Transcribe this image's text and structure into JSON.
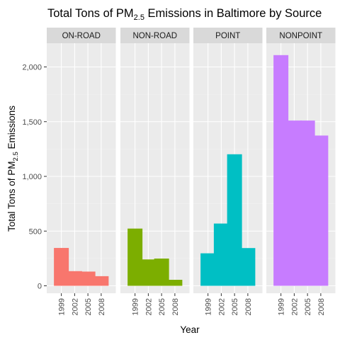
{
  "chart_data": {
    "type": "bar",
    "title": {
      "main": "Total Tons of PM",
      "subscript": "2.5",
      "rest": " Emissions in Baltimore by Source"
    },
    "xlabel": "Year",
    "ylabel": {
      "main": "Total Tons of PM",
      "subscript": "2.5",
      "rest": " Emissions"
    },
    "categories": [
      "1999",
      "2002",
      "2005",
      "2008"
    ],
    "ylim": [
      0,
      2220
    ],
    "yticks": [
      {
        "value": 0,
        "label": "0"
      },
      {
        "value": 500,
        "label": "500"
      },
      {
        "value": 1000,
        "label": "1,000"
      },
      {
        "value": 1500,
        "label": "1,500"
      },
      {
        "value": 2000,
        "label": "2,000"
      }
    ],
    "grid": true,
    "legend": "none",
    "facets": [
      {
        "name": "ON-ROAD",
        "color": "#F8766D",
        "values": [
          346,
          134,
          130,
          88
        ]
      },
      {
        "name": "NON-ROAD",
        "color": "#7CAE00",
        "values": [
          523,
          241,
          249,
          55
        ]
      },
      {
        "name": "POINT",
        "color": "#00BFC4",
        "values": [
          297,
          569,
          1202,
          345
        ]
      },
      {
        "name": "NONPOINT",
        "color": "#C77CFF",
        "values": [
          2108,
          1510,
          1510,
          1373
        ]
      }
    ]
  }
}
